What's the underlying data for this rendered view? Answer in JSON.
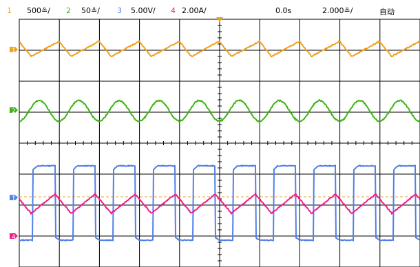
{
  "status_bar": {
    "ch1": {
      "index": "1",
      "scale": "500≗/",
      "color": "#f0a020"
    },
    "ch2": {
      "index": "2",
      "scale": "50≗/",
      "color": "#3cb414"
    },
    "ch3": {
      "index": "3",
      "scale": "5.00V/",
      "color": "#5080e8"
    },
    "ch4": {
      "index": "4",
      "scale": "2.00A/",
      "color": "#ee1e8c"
    },
    "time_offset": "0.0s",
    "timebase": "2.000≗/",
    "trigger_mode": "自动"
  },
  "channel_markers": {
    "ch1": "1",
    "ch2": "2",
    "ch3": "T",
    "ch4": "4"
  },
  "waveforms": {
    "ch1": {
      "type": "triangle",
      "cycles": 10,
      "color": "#f0a020"
    },
    "ch2": {
      "type": "sine",
      "cycles": 10,
      "color": "#3cb414"
    },
    "ch3": {
      "type": "square",
      "cycles": 10,
      "color": "#5080e8"
    },
    "ch4": {
      "type": "triangle",
      "cycles": 10,
      "color": "#ee1e8c"
    }
  },
  "trigger_line_color": "#f0a020",
  "grid": {
    "divisions_x": 10,
    "divisions_y": 8
  }
}
